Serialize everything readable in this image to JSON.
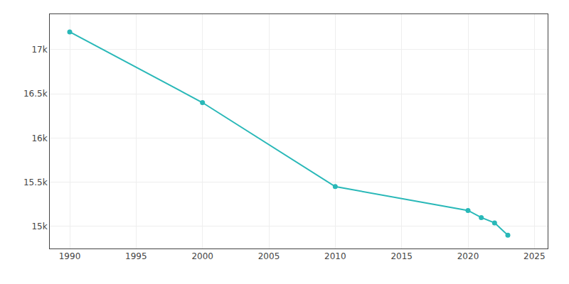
{
  "chart_data": {
    "type": "line",
    "x": [
      1990,
      2000,
      2010,
      2020,
      2021,
      2022,
      2023
    ],
    "values": [
      17200,
      16400,
      15450,
      15180,
      15100,
      15040,
      14900
    ],
    "color": "#29b8b8",
    "marker": "circle",
    "line_style": "solid",
    "xlim": [
      1988.5,
      2026
    ],
    "ylim": [
      14750,
      17400
    ],
    "xticks": [
      1990,
      1995,
      2000,
      2005,
      2010,
      2015,
      2020,
      2025
    ],
    "yticks": [
      {
        "value": 15000,
        "label": "15k"
      },
      {
        "value": 15500,
        "label": "15.5k"
      },
      {
        "value": 16000,
        "label": "16k"
      },
      {
        "value": 16500,
        "label": "16.5k"
      },
      {
        "value": 17000,
        "label": "17k"
      }
    ],
    "grid": true
  }
}
